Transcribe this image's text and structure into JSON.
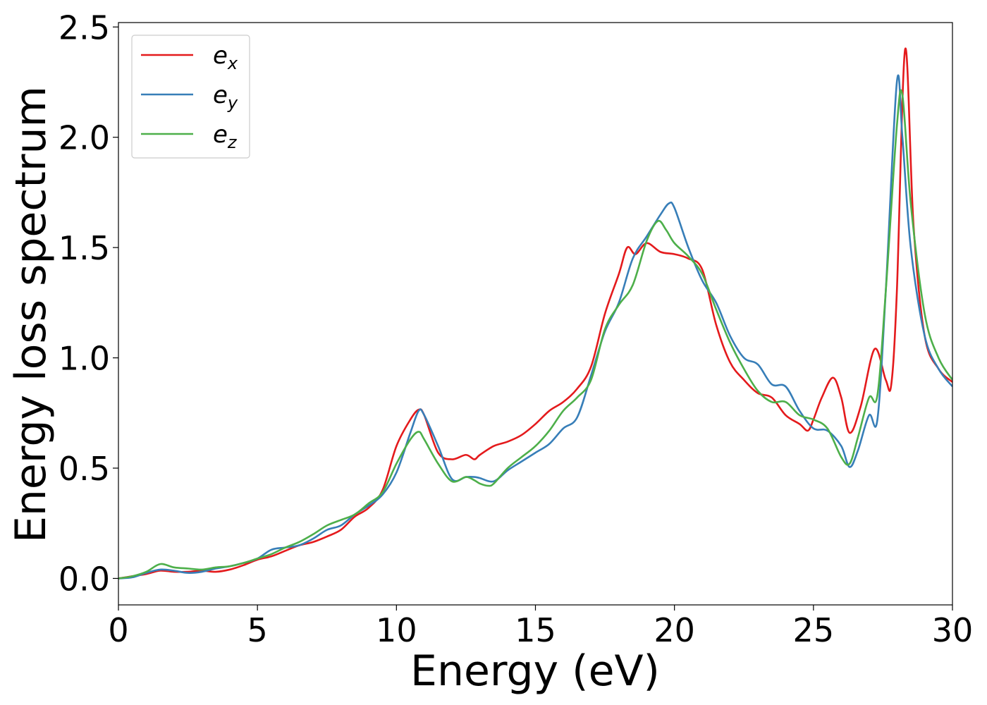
{
  "chart_data": {
    "type": "line",
    "title": "",
    "xlabel": "Energy (eV)",
    "ylabel": "Energy loss spectrum",
    "xlim": [
      0,
      30
    ],
    "ylim": [
      -0.12,
      2.52
    ],
    "xticks": [
      0,
      5,
      10,
      15,
      20,
      25,
      30
    ],
    "xtick_labels": [
      "0",
      "5",
      "10",
      "15",
      "20",
      "25",
      "30"
    ],
    "yticks": [
      0.0,
      0.5,
      1.0,
      1.5,
      2.0,
      2.5
    ],
    "ytick_labels": [
      "0.0",
      "0.5",
      "1.0",
      "1.5",
      "2.0",
      "2.5"
    ],
    "grid": false,
    "legend_position": "top-left",
    "series": [
      {
        "name": "e",
        "subscript": "x",
        "color": "#e41a1c",
        "points": [
          [
            0,
            0
          ],
          [
            0.5,
            0.01
          ],
          [
            1,
            0.02
          ],
          [
            1.5,
            0.035
          ],
          [
            2,
            0.03
          ],
          [
            2.5,
            0.03
          ],
          [
            3,
            0.035
          ],
          [
            3.5,
            0.03
          ],
          [
            4,
            0.04
          ],
          [
            4.5,
            0.06
          ],
          [
            5,
            0.085
          ],
          [
            5.5,
            0.1
          ],
          [
            6,
            0.125
          ],
          [
            6.5,
            0.15
          ],
          [
            7,
            0.165
          ],
          [
            7.5,
            0.19
          ],
          [
            8,
            0.22
          ],
          [
            8.5,
            0.28
          ],
          [
            9,
            0.32
          ],
          [
            9.5,
            0.4
          ],
          [
            10,
            0.6
          ],
          [
            10.5,
            0.72
          ],
          [
            10.8,
            0.765
          ],
          [
            11,
            0.74
          ],
          [
            11.5,
            0.57
          ],
          [
            12,
            0.54
          ],
          [
            12.5,
            0.56
          ],
          [
            12.8,
            0.54
          ],
          [
            13,
            0.56
          ],
          [
            13.5,
            0.6
          ],
          [
            14,
            0.62
          ],
          [
            14.5,
            0.65
          ],
          [
            15,
            0.7
          ],
          [
            15.5,
            0.76
          ],
          [
            16,
            0.8
          ],
          [
            16.5,
            0.86
          ],
          [
            17,
            0.96
          ],
          [
            17.5,
            1.2
          ],
          [
            18,
            1.38
          ],
          [
            18.3,
            1.5
          ],
          [
            18.6,
            1.47
          ],
          [
            19,
            1.52
          ],
          [
            19.5,
            1.48
          ],
          [
            20,
            1.47
          ],
          [
            20.5,
            1.45
          ],
          [
            21,
            1.4
          ],
          [
            21.5,
            1.15
          ],
          [
            22,
            0.98
          ],
          [
            22.5,
            0.9
          ],
          [
            23,
            0.84
          ],
          [
            23.5,
            0.82
          ],
          [
            24,
            0.74
          ],
          [
            24.5,
            0.7
          ],
          [
            24.8,
            0.67
          ],
          [
            25,
            0.72
          ],
          [
            25.3,
            0.82
          ],
          [
            25.7,
            0.91
          ],
          [
            26,
            0.82
          ],
          [
            26.3,
            0.66
          ],
          [
            26.7,
            0.78
          ],
          [
            27.2,
            1.04
          ],
          [
            27.6,
            0.9
          ],
          [
            27.8,
            0.88
          ],
          [
            28,
            1.3
          ],
          [
            28.3,
            2.4
          ],
          [
            28.6,
            1.6
          ],
          [
            29,
            1.1
          ],
          [
            29.5,
            0.95
          ],
          [
            30,
            0.89
          ]
        ]
      },
      {
        "name": "e",
        "subscript": "y",
        "color": "#377eb8",
        "points": [
          [
            0,
            0
          ],
          [
            0.5,
            0.005
          ],
          [
            1,
            0.025
          ],
          [
            1.5,
            0.04
          ],
          [
            2,
            0.035
          ],
          [
            2.5,
            0.025
          ],
          [
            3,
            0.03
          ],
          [
            3.5,
            0.045
          ],
          [
            4,
            0.055
          ],
          [
            4.5,
            0.07
          ],
          [
            5,
            0.09
          ],
          [
            5.5,
            0.13
          ],
          [
            6,
            0.14
          ],
          [
            6.5,
            0.15
          ],
          [
            7,
            0.18
          ],
          [
            7.5,
            0.22
          ],
          [
            8,
            0.24
          ],
          [
            8.5,
            0.29
          ],
          [
            9,
            0.33
          ],
          [
            9.5,
            0.38
          ],
          [
            10,
            0.48
          ],
          [
            10.5,
            0.66
          ],
          [
            10.8,
            0.76
          ],
          [
            11,
            0.74
          ],
          [
            11.5,
            0.6
          ],
          [
            12,
            0.45
          ],
          [
            12.5,
            0.46
          ],
          [
            12.8,
            0.46
          ],
          [
            13,
            0.455
          ],
          [
            13.5,
            0.44
          ],
          [
            14,
            0.49
          ],
          [
            14.5,
            0.53
          ],
          [
            15,
            0.57
          ],
          [
            15.5,
            0.61
          ],
          [
            16,
            0.68
          ],
          [
            16.5,
            0.73
          ],
          [
            17,
            0.92
          ],
          [
            17.5,
            1.12
          ],
          [
            18,
            1.25
          ],
          [
            18.5,
            1.45
          ],
          [
            19,
            1.55
          ],
          [
            19.5,
            1.65
          ],
          [
            19.8,
            1.7
          ],
          [
            20,
            1.68
          ],
          [
            20.5,
            1.5
          ],
          [
            21,
            1.35
          ],
          [
            21.5,
            1.25
          ],
          [
            22,
            1.1
          ],
          [
            22.5,
            1.0
          ],
          [
            23,
            0.97
          ],
          [
            23.5,
            0.88
          ],
          [
            24,
            0.87
          ],
          [
            24.5,
            0.76
          ],
          [
            25,
            0.68
          ],
          [
            25.5,
            0.67
          ],
          [
            26,
            0.6
          ],
          [
            26.3,
            0.505
          ],
          [
            26.6,
            0.58
          ],
          [
            27,
            0.74
          ],
          [
            27.3,
            0.72
          ],
          [
            27.6,
            1.3
          ],
          [
            28,
            2.25
          ],
          [
            28.2,
            2.0
          ],
          [
            28.5,
            1.5
          ],
          [
            29,
            1.1
          ],
          [
            29.5,
            0.95
          ],
          [
            30,
            0.87
          ]
        ]
      },
      {
        "name": "e",
        "subscript": "z",
        "color": "#4daf4a",
        "points": [
          [
            0,
            0
          ],
          [
            0.5,
            0.01
          ],
          [
            1,
            0.03
          ],
          [
            1.5,
            0.065
          ],
          [
            2,
            0.05
          ],
          [
            2.5,
            0.045
          ],
          [
            3,
            0.04
          ],
          [
            3.5,
            0.05
          ],
          [
            4,
            0.055
          ],
          [
            4.5,
            0.07
          ],
          [
            5,
            0.09
          ],
          [
            5.5,
            0.11
          ],
          [
            6,
            0.14
          ],
          [
            6.5,
            0.165
          ],
          [
            7,
            0.2
          ],
          [
            7.5,
            0.24
          ],
          [
            8,
            0.265
          ],
          [
            8.5,
            0.29
          ],
          [
            9,
            0.34
          ],
          [
            9.5,
            0.39
          ],
          [
            10,
            0.52
          ],
          [
            10.5,
            0.63
          ],
          [
            10.8,
            0.665
          ],
          [
            11,
            0.63
          ],
          [
            11.5,
            0.52
          ],
          [
            12,
            0.44
          ],
          [
            12.5,
            0.46
          ],
          [
            12.8,
            0.445
          ],
          [
            13,
            0.43
          ],
          [
            13.3,
            0.42
          ],
          [
            13.5,
            0.43
          ],
          [
            14,
            0.5
          ],
          [
            14.5,
            0.55
          ],
          [
            15,
            0.6
          ],
          [
            15.5,
            0.67
          ],
          [
            16,
            0.76
          ],
          [
            16.5,
            0.82
          ],
          [
            17,
            0.9
          ],
          [
            17.5,
            1.13
          ],
          [
            18,
            1.24
          ],
          [
            18.5,
            1.33
          ],
          [
            19,
            1.53
          ],
          [
            19.4,
            1.62
          ],
          [
            19.7,
            1.58
          ],
          [
            20,
            1.52
          ],
          [
            20.5,
            1.46
          ],
          [
            21,
            1.38
          ],
          [
            21.5,
            1.22
          ],
          [
            22,
            1.07
          ],
          [
            22.5,
            0.95
          ],
          [
            23,
            0.85
          ],
          [
            23.5,
            0.8
          ],
          [
            24,
            0.8
          ],
          [
            24.5,
            0.74
          ],
          [
            25,
            0.72
          ],
          [
            25.5,
            0.68
          ],
          [
            26,
            0.55
          ],
          [
            26.3,
            0.52
          ],
          [
            26.6,
            0.64
          ],
          [
            27,
            0.82
          ],
          [
            27.3,
            0.83
          ],
          [
            27.6,
            1.3
          ],
          [
            28,
            2.05
          ],
          [
            28.2,
            2.19
          ],
          [
            28.5,
            1.7
          ],
          [
            29,
            1.2
          ],
          [
            29.5,
            1.0
          ],
          [
            30,
            0.9
          ]
        ]
      }
    ]
  }
}
